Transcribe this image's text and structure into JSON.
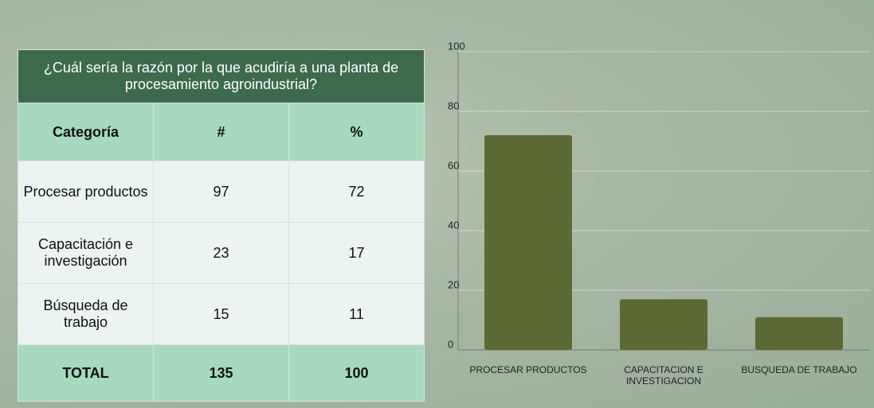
{
  "table": {
    "title": "¿Cuál sería la razón por la que acudiría a una planta de procesamiento agroindustrial?",
    "header": [
      "Categoría",
      "#",
      "%"
    ],
    "rows": [
      [
        "Procesar productos",
        "97",
        "72"
      ],
      [
        "Capacitación e investigación",
        "23",
        "17"
      ],
      [
        "Búsqueda de trabajo",
        "15",
        "11"
      ]
    ],
    "total": [
      "TOTAL",
      "135",
      "100"
    ]
  },
  "chart_data": {
    "type": "bar",
    "categories": [
      "PROCESAR PRODUCTOS",
      "CAPACITACION E INVESTIGACION",
      "BUSQUEDA DE TRABAJO"
    ],
    "values": [
      72,
      17,
      11
    ],
    "color": "#5b6a34",
    "ylim": [
      0,
      100
    ],
    "yticks": [
      0,
      20,
      40,
      60,
      80,
      100
    ],
    "grid": true
  }
}
